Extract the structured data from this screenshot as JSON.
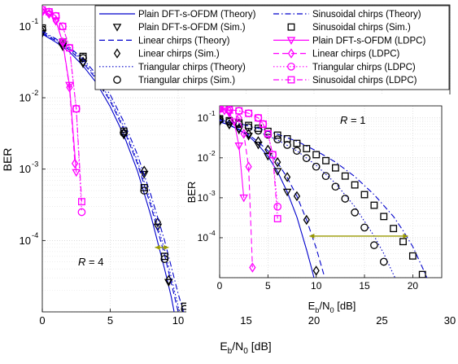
{
  "chart_data": [
    {
      "type": "line",
      "name": "main",
      "xlabel": "E_b/N_0 [dB]",
      "ylabel": "BER",
      "xlim": [
        0,
        30
      ],
      "ylim": [
        1e-05,
        0.2
      ],
      "yscale": "log",
      "xticks": [
        0,
        5,
        10,
        15,
        20,
        25,
        30
      ],
      "yticks": [
        0.0001,
        0.001,
        0.01,
        0.1
      ],
      "ytick_labels": [
        "10",
        "10",
        "10",
        "10"
      ],
      "ytick_exps": [
        "-4",
        "-3",
        "-2",
        "-1"
      ],
      "grid": true,
      "annotation": "R = 4",
      "legend_placement": "top-right",
      "series": [
        {
          "name": "Plain DFT-s-OFDM (Theory)",
          "color": "#0000cc",
          "dash": "solid",
          "marker": "none",
          "x": [
            0,
            1,
            2,
            3,
            4,
            5,
            6,
            7,
            8,
            9,
            9.5,
            10
          ],
          "y": [
            0.078,
            0.06,
            0.044,
            0.028,
            0.016,
            0.0075,
            0.003,
            0.00095,
            0.00022,
            4e-05,
            1.6e-05,
            5e-06
          ]
        },
        {
          "name": "Plain DFT-s-OFDM (Sim.)",
          "color": "#000000",
          "dash": "none",
          "marker": "triangle-down",
          "x": [
            0,
            1.5,
            3,
            4.5,
            6,
            7.5,
            8.5,
            9.3
          ],
          "y": [
            0.08,
            0.052,
            0.03,
            0.014,
            0.003,
            0.00085,
            0.000155,
            2.6e-05
          ]
        },
        {
          "name": "Linear chirps (Theory)",
          "color": "#0000cc",
          "dash": "dashed",
          "marker": "none",
          "x": [
            0,
            1,
            2,
            3,
            4,
            5,
            6,
            7,
            8,
            9,
            10,
            10.5
          ],
          "y": [
            0.08,
            0.063,
            0.047,
            0.031,
            0.018,
            0.009,
            0.0036,
            0.0012,
            0.0003,
            6.3e-05,
            1e-05,
            4e-06
          ]
        },
        {
          "name": "Linear chirps (Sim.)",
          "color": "#000000",
          "dash": "none",
          "marker": "diamond",
          "x": [
            0,
            1.5,
            3,
            4.5,
            6,
            7.5,
            8.5,
            9.3
          ],
          "y": [
            0.085,
            0.055,
            0.032,
            0.0148,
            0.0032,
            0.00095,
            0.00018,
            2.8e-05
          ]
        },
        {
          "name": "Triangular chirps (Theory)",
          "color": "#0000cc",
          "dash": "dotted",
          "marker": "none",
          "x": [
            0,
            1,
            2,
            3,
            4,
            5,
            6,
            7,
            8,
            9,
            10,
            10.8
          ],
          "y": [
            0.082,
            0.065,
            0.049,
            0.033,
            0.019,
            0.0095,
            0.0039,
            0.0013,
            0.00034,
            7.5e-05,
            1.2e-05,
            4e-06
          ]
        },
        {
          "name": "Triangular chirps (Sim.)",
          "color": "#000000",
          "dash": "none",
          "marker": "circle",
          "x": [
            0,
            1.5,
            3,
            4.5,
            6,
            7.5,
            9,
            10.5
          ],
          "y": [
            0.09,
            0.058,
            0.036,
            0.016,
            0.0032,
            0.0005,
            5.5e-05,
            1.1e-05
          ]
        },
        {
          "name": "Sinusoidal chirps (Theory)",
          "color": "#0000cc",
          "dash": "dashdot",
          "marker": "none",
          "x": [
            0,
            1,
            2,
            3,
            4,
            5,
            6,
            7,
            8,
            9,
            10,
            11
          ],
          "y": [
            0.085,
            0.067,
            0.051,
            0.035,
            0.021,
            0.011,
            0.0046,
            0.0016,
            0.00043,
            0.0001,
            1.8e-05,
            4e-06
          ]
        },
        {
          "name": "Sinusoidal chirps (Sim.)",
          "color": "#000000",
          "dash": "none",
          "marker": "square",
          "x": [
            0,
            1.5,
            3,
            4.5,
            6,
            7.5,
            9,
            10.5
          ],
          "y": [
            0.095,
            0.06,
            0.038,
            0.017,
            0.0034,
            0.00055,
            6e-05,
            1.2e-05
          ]
        },
        {
          "name": "Plain DFT-s-OFDM (LDPC)",
          "color": "#ff00ff",
          "dash": "solid",
          "marker": "triangle-down",
          "x": [
            0,
            0.5,
            1,
            1.5,
            2,
            2.5
          ],
          "y": [
            0.16,
            0.15,
            0.12,
            0.06,
            0.015,
            0.0009
          ]
        },
        {
          "name": "Linear chirps (LDPC)",
          "color": "#ff00ff",
          "dash": "dashed",
          "marker": "diamond",
          "x": [
            0,
            0.5,
            1,
            1.5,
            2,
            2.4
          ],
          "y": [
            0.16,
            0.15,
            0.12,
            0.06,
            0.014,
            0.0012
          ]
        },
        {
          "name": "Triangular chirps (LDPC)",
          "color": "#ff00ff",
          "dash": "dotted",
          "marker": "circle",
          "x": [
            0,
            0.5,
            1,
            1.5,
            2,
            2.5,
            2.9
          ],
          "y": [
            0.17,
            0.16,
            0.14,
            0.1,
            0.05,
            0.007,
            0.00025
          ]
        },
        {
          "name": "Sinusoidal chirps (LDPC)",
          "color": "#ff00ff",
          "dash": "dashdot",
          "marker": "square",
          "x": [
            0,
            0.5,
            1,
            1.5,
            2,
            2.5,
            2.9
          ],
          "y": [
            0.17,
            0.16,
            0.14,
            0.1,
            0.05,
            0.007,
            0.00035
          ]
        }
      ],
      "arrow": {
        "color": "#999900",
        "x1": 8.3,
        "x2": 9.3,
        "y": 8e-05
      }
    },
    {
      "type": "line",
      "name": "inset",
      "xlabel": "E_b/N_0 [dB]",
      "ylabel": "BER",
      "xlim": [
        0,
        23
      ],
      "ylim": [
        1e-05,
        0.2
      ],
      "yscale": "log",
      "xticks": [
        0,
        5,
        10,
        15,
        20
      ],
      "yticks": [
        0.0001,
        0.001,
        0.01,
        0.1
      ],
      "ytick_labels": [
        "10",
        "10",
        "10",
        "10"
      ],
      "ytick_exps": [
        "-4",
        "-3",
        "-2",
        "-1"
      ],
      "grid": true,
      "annotation": "R = 1",
      "series": [
        {
          "name": "Plain DFT-s-OFDM (Theory)",
          "color": "#0000cc",
          "dash": "solid",
          "marker": "none",
          "x": [
            0,
            1,
            2,
            3,
            4,
            5,
            6,
            7,
            8,
            9,
            9.5,
            10
          ],
          "y": [
            0.08,
            0.066,
            0.05,
            0.035,
            0.021,
            0.011,
            0.0045,
            0.0014,
            0.00033,
            5e-05,
            1.8e-05,
            6e-06
          ]
        },
        {
          "name": "Plain DFT-s-OFDM (Sim.)",
          "color": "#000000",
          "dash": "none",
          "marker": "triangle-down",
          "x": [
            0,
            1,
            2,
            3,
            4,
            5,
            6,
            7
          ],
          "y": [
            0.08,
            0.066,
            0.05,
            0.035,
            0.021,
            0.011,
            0.0046,
            0.0014
          ]
        },
        {
          "name": "Linear chirps (Theory)",
          "color": "#0000cc",
          "dash": "dashed",
          "marker": "none",
          "x": [
            0,
            1,
            2,
            3,
            4,
            5,
            6,
            7,
            8,
            9,
            10,
            11
          ],
          "y": [
            0.08,
            0.067,
            0.052,
            0.038,
            0.025,
            0.015,
            0.0075,
            0.0032,
            0.0011,
            0.00028,
            5.5e-05,
            8e-06
          ]
        },
        {
          "name": "Linear chirps (Sim.)",
          "color": "#000000",
          "dash": "none",
          "marker": "diamond",
          "x": [
            0,
            1,
            2,
            3,
            4,
            5,
            6,
            7,
            8,
            9,
            10
          ],
          "y": [
            0.085,
            0.07,
            0.055,
            0.04,
            0.026,
            0.016,
            0.0078,
            0.0033,
            0.0011,
            0.00028,
            1.5e-05
          ]
        },
        {
          "name": "Triangular chirps (Theory)",
          "color": "#0000cc",
          "dash": "dotted",
          "marker": "none",
          "x": [
            0,
            2,
            4,
            6,
            8,
            10,
            12,
            14,
            16,
            17,
            18,
            19
          ],
          "y": [
            0.085,
            0.065,
            0.045,
            0.028,
            0.015,
            0.0065,
            0.0023,
            0.0006,
            0.00011,
            4e-05,
            1.2e-05,
            4e-06
          ]
        },
        {
          "name": "Triangular chirps (Sim.)",
          "color": "#000000",
          "dash": "none",
          "marker": "circle",
          "x": [
            0,
            1,
            2,
            3,
            4,
            5,
            6,
            7,
            8,
            9,
            10,
            11,
            12,
            13,
            14,
            15,
            16,
            17
          ],
          "y": [
            0.09,
            0.08,
            0.07,
            0.058,
            0.048,
            0.038,
            0.029,
            0.021,
            0.015,
            0.0098,
            0.006,
            0.0035,
            0.0019,
            0.00095,
            0.00043,
            0.00018,
            6.5e-05,
            2.5e-05
          ]
        },
        {
          "name": "Sinusoidal chirps (Theory)",
          "color": "#0000cc",
          "dash": "dashdot",
          "marker": "none",
          "x": [
            0,
            2,
            4,
            6,
            8,
            10,
            12,
            14,
            16,
            18,
            19,
            20,
            21,
            22
          ],
          "y": [
            0.09,
            0.072,
            0.055,
            0.039,
            0.026,
            0.015,
            0.0078,
            0.0034,
            0.0012,
            0.00034,
            0.00015,
            6e-05,
            1.8e-05,
            5e-06
          ]
        },
        {
          "name": "Sinusoidal chirps (Sim.)",
          "color": "#000000",
          "dash": "none",
          "marker": "square",
          "x": [
            0,
            1,
            2,
            3,
            4,
            5,
            6,
            7,
            8,
            9,
            10,
            11,
            12,
            13,
            14,
            15,
            16,
            17,
            18,
            19,
            20,
            21
          ],
          "y": [
            0.095,
            0.085,
            0.075,
            0.065,
            0.055,
            0.046,
            0.037,
            0.03,
            0.023,
            0.017,
            0.012,
            0.0085,
            0.0056,
            0.0035,
            0.0021,
            0.0012,
            0.00065,
            0.00034,
            0.00017,
            8e-05,
            3.5e-05,
            1.2e-05
          ]
        },
        {
          "name": "Plain DFT-s-OFDM (LDPC)",
          "color": "#ff00ff",
          "dash": "solid",
          "marker": "triangle-down",
          "x": [
            0,
            0.5,
            1,
            1.5,
            2,
            2.5
          ],
          "y": [
            0.16,
            0.15,
            0.13,
            0.08,
            0.02,
            0.001
          ]
        },
        {
          "name": "Linear chirps (LDPC)",
          "color": "#ff00ff",
          "dash": "dashed",
          "marker": "diamond",
          "x": [
            0,
            1,
            2,
            2.5,
            3,
            3.4
          ],
          "y": [
            0.17,
            0.15,
            0.1,
            0.04,
            0.006,
            1.8e-05
          ]
        },
        {
          "name": "Triangular chirps (LDPC)",
          "color": "#ff00ff",
          "dash": "dotted",
          "marker": "circle",
          "x": [
            0,
            1,
            2,
            3,
            4,
            4.5,
            5,
            5.5,
            6
          ],
          "y": [
            0.17,
            0.16,
            0.15,
            0.13,
            0.1,
            0.07,
            0.04,
            0.012,
            0.0006
          ]
        },
        {
          "name": "Sinusoidal chirps (LDPC)",
          "color": "#ff00ff",
          "dash": "dashdot",
          "marker": "square",
          "x": [
            0,
            1,
            2,
            3,
            4,
            4.5,
            5,
            5.5,
            6
          ],
          "y": [
            0.17,
            0.16,
            0.15,
            0.13,
            0.1,
            0.07,
            0.04,
            0.012,
            0.0003
          ]
        }
      ],
      "arrow": {
        "color": "#999900",
        "x1": 9.3,
        "x2": 19.5,
        "y": 0.00011
      }
    }
  ],
  "legend": {
    "col1": [
      {
        "label": "Plain DFT-s-OFDM (Theory)",
        "color": "#0000cc",
        "dash": "solid",
        "marker": "none"
      },
      {
        "label": "Plain DFT-s-OFDM (Sim.)",
        "color": "#000000",
        "dash": "none",
        "marker": "triangle-down"
      },
      {
        "label": "Linear chirps (Theory)",
        "color": "#0000cc",
        "dash": "dashed",
        "marker": "none"
      },
      {
        "label": "Linear chirps (Sim.)",
        "color": "#000000",
        "dash": "none",
        "marker": "diamond"
      },
      {
        "label": "Triangular chirps (Theory)",
        "color": "#0000cc",
        "dash": "dotted",
        "marker": "none"
      },
      {
        "label": "Triangular chirps (Sim.)",
        "color": "#000000",
        "dash": "none",
        "marker": "circle"
      }
    ],
    "col2": [
      {
        "label": "Sinusoidal chirps (Theory)",
        "color": "#0000cc",
        "dash": "dashdot",
        "marker": "none"
      },
      {
        "label": "Sinusoidal chirps (Sim.)",
        "color": "#000000",
        "dash": "none",
        "marker": "square"
      },
      {
        "label": "Plain DFT-s-OFDM (LDPC)",
        "color": "#ff00ff",
        "dash": "solid",
        "marker": "triangle-down"
      },
      {
        "label": "Linear chirps (LDPC)",
        "color": "#ff00ff",
        "dash": "dashed",
        "marker": "diamond"
      },
      {
        "label": "Triangular chirps (LDPC)",
        "color": "#ff00ff",
        "dash": "dotted",
        "marker": "circle"
      },
      {
        "label": "Sinusoidal chirps (LDPC)",
        "color": "#ff00ff",
        "dash": "dashdot",
        "marker": "square"
      }
    ]
  }
}
